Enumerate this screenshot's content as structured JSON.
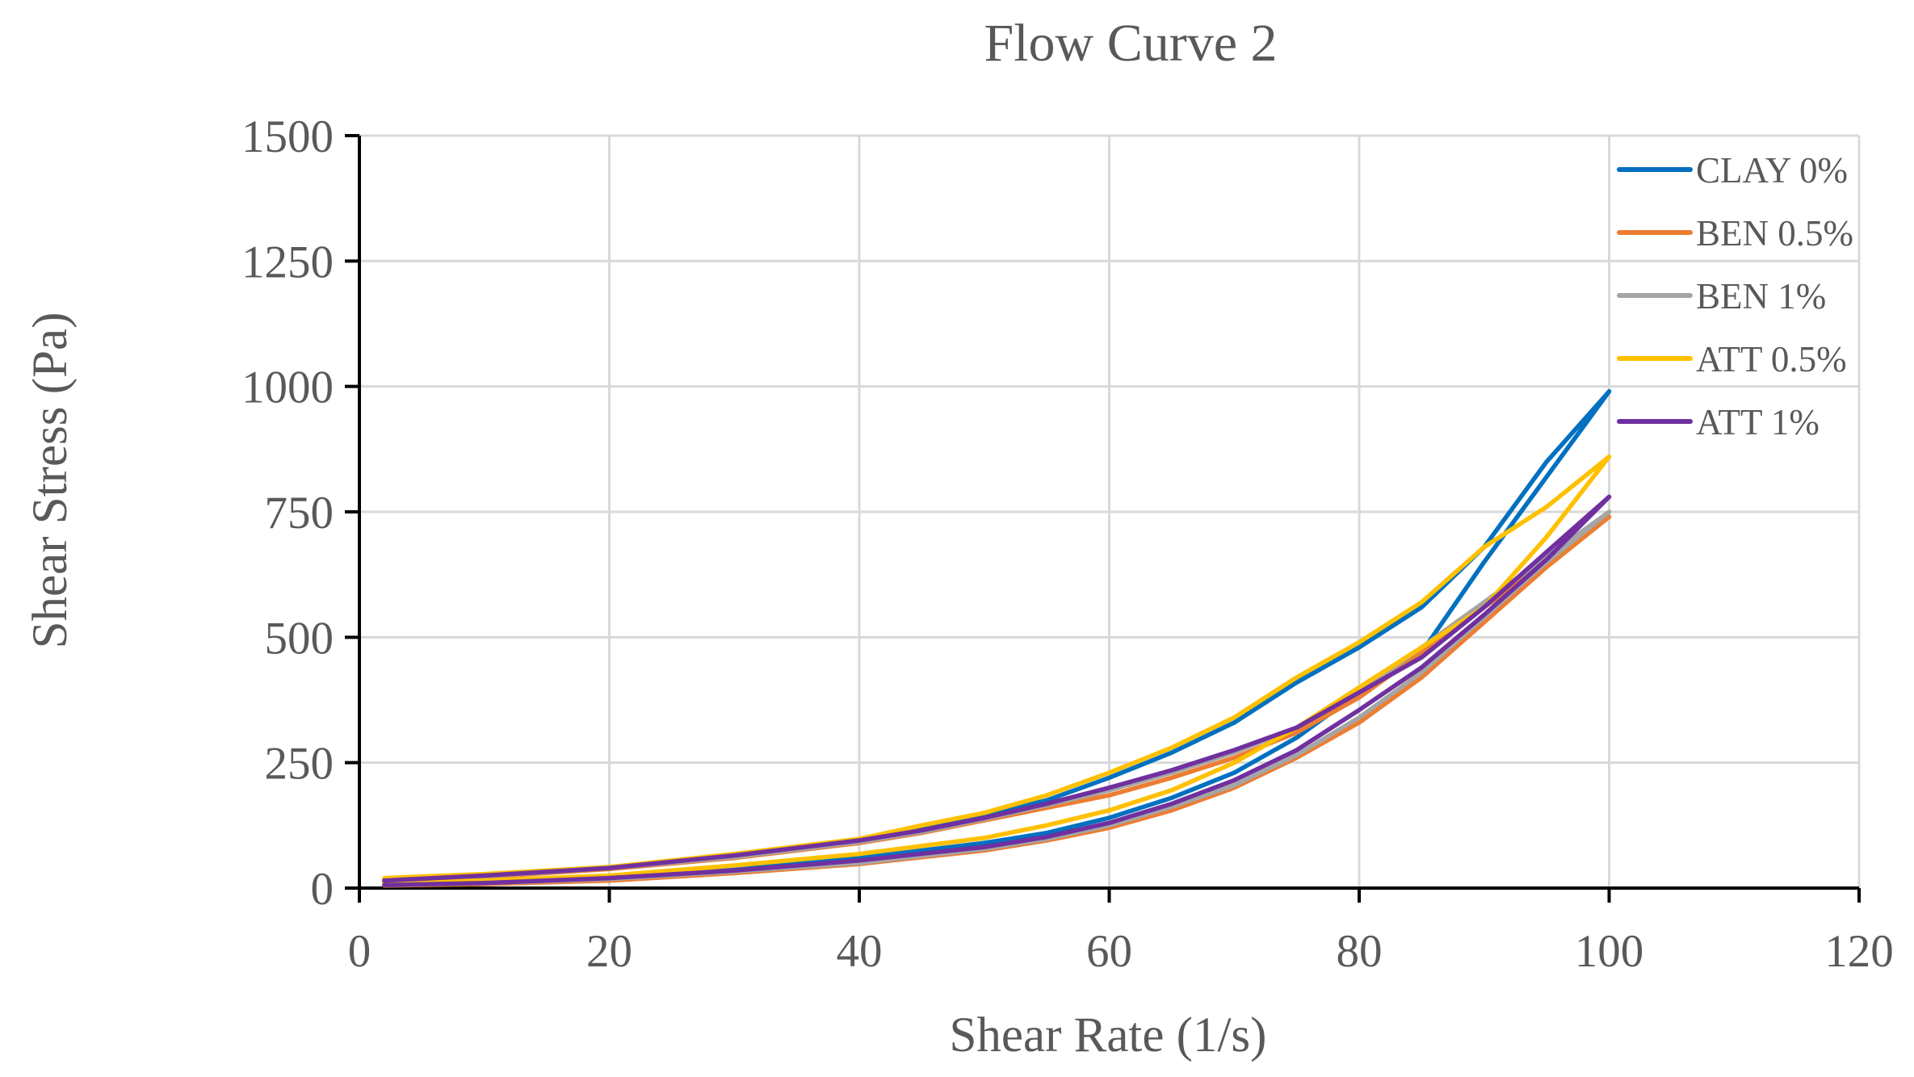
{
  "chart_data": {
    "type": "line",
    "title": "Flow Curve 2",
    "xlabel": "Shear Rate (1/s)",
    "ylabel": "Shear Stress (Pa)",
    "xlim": [
      0,
      120
    ],
    "ylim": [
      0,
      1500
    ],
    "xticks": [
      0,
      20,
      40,
      60,
      80,
      100,
      120
    ],
    "yticks": [
      0,
      250,
      500,
      750,
      1000,
      1250,
      1500
    ],
    "grid": true,
    "legend_position": "top-right",
    "series": [
      {
        "name": "CLAY 0%",
        "color": "#0070c0",
        "ramp_up": {
          "x": [
            2,
            10,
            20,
            30,
            40,
            50,
            55,
            60,
            65,
            70,
            75,
            80,
            85,
            90,
            95,
            100
          ],
          "y": [
            8,
            12,
            20,
            40,
            60,
            90,
            110,
            140,
            180,
            230,
            300,
            390,
            470,
            650,
            820,
            990
          ]
        },
        "ramp_down": {
          "x": [
            100,
            95,
            90,
            85,
            80,
            75,
            70,
            65,
            60,
            55,
            50,
            45,
            40,
            30,
            20,
            10,
            2
          ],
          "y": [
            990,
            850,
            680,
            560,
            480,
            410,
            330,
            270,
            220,
            175,
            145,
            120,
            95,
            65,
            40,
            25,
            18
          ]
        }
      },
      {
        "name": "BEN 0.5%",
        "color": "#ed7d31",
        "ramp_up": {
          "x": [
            2,
            10,
            20,
            30,
            40,
            50,
            55,
            60,
            65,
            70,
            75,
            80,
            85,
            90,
            95,
            100
          ],
          "y": [
            5,
            8,
            15,
            30,
            48,
            75,
            95,
            120,
            155,
            200,
            260,
            330,
            420,
            530,
            640,
            740
          ]
        },
        "ramp_down": {
          "x": [
            100,
            95,
            90,
            85,
            80,
            75,
            70,
            65,
            60,
            55,
            50,
            45,
            40,
            30,
            20,
            10,
            2
          ],
          "y": [
            740,
            650,
            560,
            470,
            380,
            310,
            260,
            220,
            185,
            160,
            135,
            110,
            90,
            60,
            38,
            22,
            12
          ]
        }
      },
      {
        "name": "BEN 1%",
        "color": "#a5a5a5",
        "ramp_up": {
          "x": [
            2,
            10,
            20,
            30,
            40,
            50,
            55,
            60,
            65,
            70,
            75,
            80,
            85,
            90,
            95,
            100
          ],
          "y": [
            6,
            10,
            18,
            33,
            50,
            78,
            98,
            125,
            162,
            205,
            265,
            340,
            430,
            540,
            650,
            750
          ]
        },
        "ramp_down": {
          "x": [
            100,
            95,
            90,
            85,
            80,
            75,
            70,
            65,
            60,
            55,
            50,
            45,
            40,
            30,
            20,
            10,
            2
          ],
          "y": [
            750,
            660,
            570,
            480,
            390,
            320,
            270,
            230,
            195,
            165,
            138,
            112,
            92,
            62,
            40,
            24,
            14
          ]
        }
      },
      {
        "name": "ATT 0.5%",
        "color": "#ffc000",
        "ramp_up": {
          "x": [
            2,
            10,
            20,
            30,
            40,
            50,
            55,
            60,
            65,
            70,
            75,
            80,
            85,
            90,
            95,
            100
          ],
          "y": [
            10,
            15,
            25,
            45,
            68,
            100,
            125,
            155,
            195,
            250,
            320,
            400,
            480,
            560,
            700,
            860
          ]
        },
        "ramp_down": {
          "x": [
            100,
            95,
            90,
            85,
            80,
            75,
            70,
            65,
            60,
            55,
            50,
            45,
            40,
            30,
            20,
            10,
            2
          ],
          "y": [
            860,
            760,
            680,
            570,
            490,
            420,
            340,
            280,
            230,
            185,
            150,
            125,
            98,
            68,
            42,
            28,
            20
          ]
        }
      },
      {
        "name": "ATT 1%",
        "color": "#7030a0",
        "ramp_up": {
          "x": [
            2,
            10,
            20,
            30,
            40,
            50,
            55,
            60,
            65,
            70,
            75,
            80,
            85,
            90,
            95,
            100
          ],
          "y": [
            6,
            10,
            20,
            35,
            55,
            82,
            102,
            130,
            168,
            215,
            275,
            355,
            440,
            545,
            655,
            780
          ]
        },
        "ramp_down": {
          "x": [
            100,
            95,
            90,
            85,
            80,
            75,
            70,
            65,
            60,
            55,
            50,
            45,
            40,
            30,
            20,
            10,
            2
          ],
          "y": [
            780,
            670,
            560,
            460,
            390,
            320,
            275,
            235,
            200,
            168,
            140,
            115,
            95,
            65,
            40,
            25,
            15
          ]
        }
      }
    ]
  }
}
